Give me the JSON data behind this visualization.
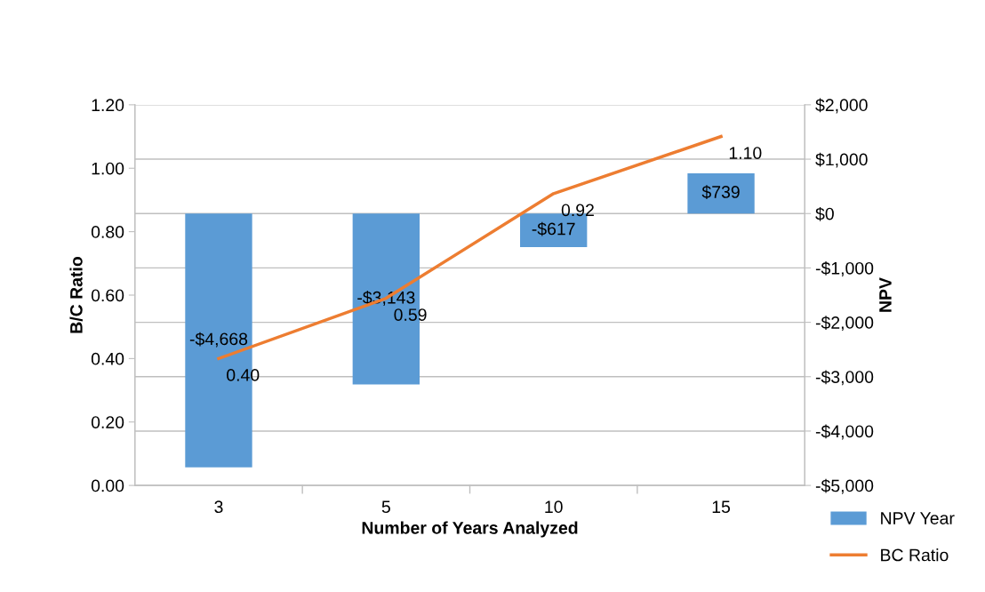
{
  "chart_data": {
    "type": "bar",
    "xlabel": "Number of Years Analyzed",
    "ylabel": "B/C Ratio",
    "y2label": "NPV",
    "categories": [
      "3",
      "5",
      "10",
      "15"
    ],
    "series": [
      {
        "name": "NPV Year",
        "axis": "y2",
        "color": "#5b9bd5",
        "values": [
          -4668,
          -3143,
          -617,
          739
        ],
        "value_labels": [
          "-$4,668",
          "-$3,143",
          "-$617",
          "$739"
        ]
      },
      {
        "name": "BC Ratio",
        "type": "line",
        "axis": "y",
        "color": "#ed7d31",
        "values": [
          0.4,
          0.59,
          0.92,
          1.1
        ],
        "value_labels": [
          "0.40",
          "0.59",
          "0.92",
          "1.10"
        ]
      }
    ],
    "ylim": [
      0,
      1.2
    ],
    "yticks": [
      {
        "value": 0,
        "label": "0.00"
      },
      {
        "value": 0.2,
        "label": "0.20"
      },
      {
        "value": 0.4,
        "label": "0.40"
      },
      {
        "value": 0.6,
        "label": "0.60"
      },
      {
        "value": 0.8,
        "label": "0.80"
      },
      {
        "value": 1.0,
        "label": "1.00"
      },
      {
        "value": 1.2,
        "label": "1.20"
      }
    ],
    "y2lim": [
      -5000,
      2000
    ],
    "y2ticks": [
      {
        "value": -5000,
        "label": "-$5,000"
      },
      {
        "value": -4000,
        "label": "-$4,000"
      },
      {
        "value": -3000,
        "label": "-$3,000"
      },
      {
        "value": -2000,
        "label": "-$2,000"
      },
      {
        "value": -1000,
        "label": "-$1,000"
      },
      {
        "value": 0,
        "label": "$0"
      },
      {
        "value": 1000,
        "label": "$1,000"
      },
      {
        "value": 2000,
        "label": "$2,000"
      }
    ],
    "grid": "y",
    "legend": "bottom right",
    "marker": "none",
    "line_style": "solid"
  }
}
